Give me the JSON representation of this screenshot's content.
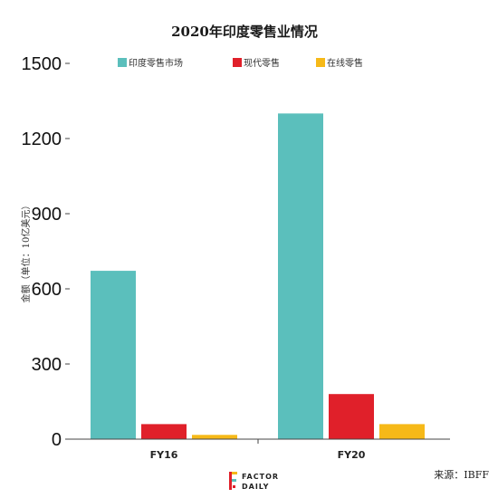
{
  "chart_data": {
    "type": "bar",
    "title": "2020年印度零售业情况",
    "ylabel": "金额（单位：10亿美元）",
    "xlabel": "",
    "categories": [
      "FY16",
      "FY20"
    ],
    "ylim": [
      0,
      1500
    ],
    "yticks": [
      0,
      300,
      600,
      900,
      1200,
      1500
    ],
    "yticklabels": [
      "0",
      "300",
      "600",
      "900",
      "1200",
      "1500"
    ],
    "series": [
      {
        "name": "印度零售市场",
        "color": "#5bbfbc",
        "values": [
          672,
          1300
        ]
      },
      {
        "name": "现代零售",
        "color": "#e0202a",
        "values": [
          60,
          180
        ]
      },
      {
        "name": "在线零售",
        "color": "#f6b918",
        "values": [
          17,
          60
        ]
      }
    ],
    "legend_position": "top",
    "grid": false
  },
  "footer": {
    "source": "来源：IBFF",
    "logo_line1": "FACTOR",
    "logo_line2": "DAILY"
  }
}
